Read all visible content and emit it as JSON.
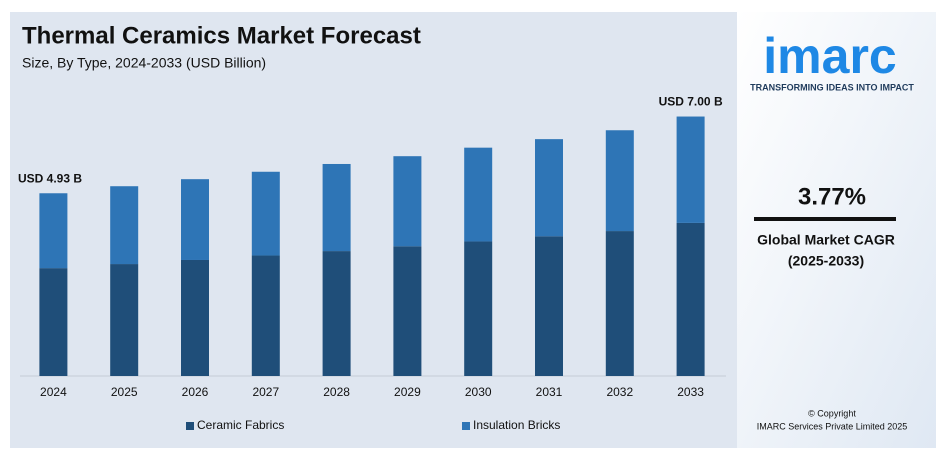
{
  "chart_data": {
    "type": "bar",
    "stacked": true,
    "title": "Thermal Ceramics Market Forecast",
    "subtitle": "Size, By Type, 2024-2033 (USD Billion)",
    "categories": [
      "2024",
      "2025",
      "2026",
      "2027",
      "2028",
      "2029",
      "2030",
      "2031",
      "2032",
      "2033"
    ],
    "series": [
      {
        "name": "Ceramic Fabrics",
        "color": "#1f4e79",
        "values": [
          2.91,
          3.02,
          3.13,
          3.25,
          3.37,
          3.5,
          3.63,
          3.77,
          3.91,
          4.13
        ]
      },
      {
        "name": "Insulation Bricks",
        "color": "#2e75b6",
        "values": [
          2.02,
          2.1,
          2.18,
          2.26,
          2.35,
          2.43,
          2.53,
          2.62,
          2.72,
          2.87
        ]
      }
    ],
    "annotations": [
      "USD 4.93 B",
      "USD 7.00 B"
    ],
    "ylim": [
      0,
      7.5
    ],
    "grid": false,
    "legend": "bottom"
  },
  "side_panel": {
    "logo": "imarc",
    "tagline": "TRANSFORMING IDEAS INTO IMPACT",
    "cagr": "3.77%",
    "cagr_label": "Global Market CAGR",
    "cagr_period": "(2025-2033)",
    "copyright": "© Copyright",
    "company": "IMARC Services Private Limited 2025"
  }
}
